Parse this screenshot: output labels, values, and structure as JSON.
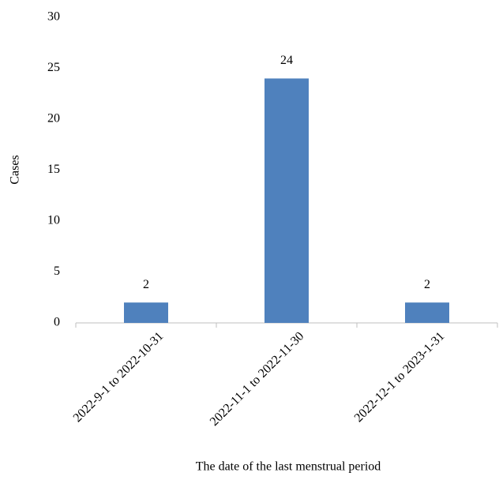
{
  "chart_data": {
    "type": "bar",
    "x_label": "The date of the last menstrual period",
    "y_label": "Cases",
    "categories": [
      "2022-9-1 to 2022-10-31",
      "2022-11-1 to 2022-11-30",
      "2022-12-1 to 2023-1-31"
    ],
    "values": [
      2,
      24,
      2
    ],
    "color": "#4f81bd",
    "ylim": [
      0,
      30
    ],
    "yticks": [
      0,
      5,
      10,
      15,
      20,
      25,
      30
    ],
    "grid": false
  }
}
